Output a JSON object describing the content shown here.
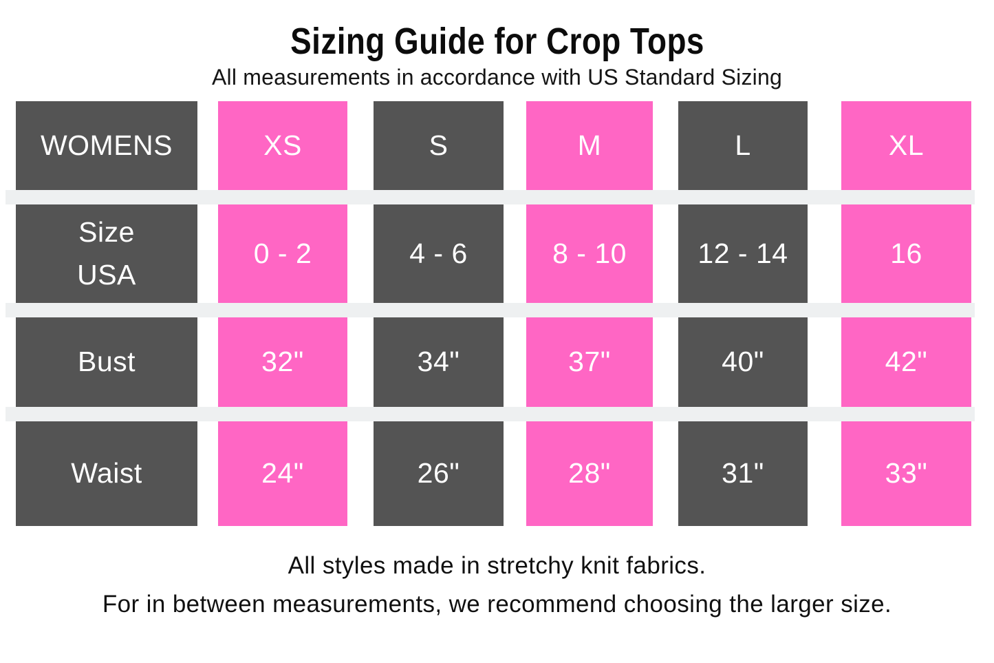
{
  "page": {
    "title": "Sizing Guide for Crop Tops",
    "subtitle": "All measurements in accordance with US Standard Sizing",
    "footer": {
      "line1": "All styles made in stretchy knit fabrics.",
      "line2": "For in between measurements, we recommend choosing the larger size."
    }
  },
  "colors": {
    "background": "#ffffff",
    "dark_cell": "#545454",
    "pink_cell": "#ff66c4",
    "separator": "#eef0f1",
    "cell_text": "#ffffff",
    "text": "#111111"
  },
  "table": {
    "rows": [
      {
        "cells": [
          "WOMENS",
          "XS",
          "S",
          "M",
          "L",
          "XL"
        ]
      },
      {
        "cells": [
          "Size\nUSA",
          "0 - 2",
          "4 - 6",
          "8 - 10",
          "12 - 14",
          "16"
        ]
      },
      {
        "cells": [
          "Bust",
          "32\"",
          "34\"",
          "37\"",
          "40\"",
          "42\""
        ]
      },
      {
        "cells": [
          "Waist",
          "24\"",
          "26\"",
          "28\"",
          "31\"",
          "33\""
        ]
      }
    ]
  },
  "chart_data": {
    "type": "table",
    "title": "Sizing Guide for Crop Tops",
    "subtitle": "All measurements in accordance with US Standard Sizing",
    "columns": [
      "WOMENS",
      "XS",
      "S",
      "M",
      "L",
      "XL"
    ],
    "rows": [
      {
        "label": "Size USA",
        "values": [
          "0 - 2",
          "4 - 6",
          "8 - 10",
          "12 - 14",
          "16"
        ]
      },
      {
        "label": "Bust",
        "values": [
          "32\"",
          "34\"",
          "37\"",
          "40\"",
          "42\""
        ]
      },
      {
        "label": "Waist",
        "values": [
          "24\"",
          "26\"",
          "28\"",
          "31\"",
          "33\""
        ]
      }
    ],
    "notes": [
      "All styles made in stretchy knit fabrics.",
      "For in between measurements, we recommend choosing the larger size."
    ],
    "style": {
      "alternating_cell_colors": [
        "#545454",
        "#ff66c4"
      ],
      "cell_text_color": "#ffffff",
      "row_separator_color": "#eef0f1"
    }
  }
}
